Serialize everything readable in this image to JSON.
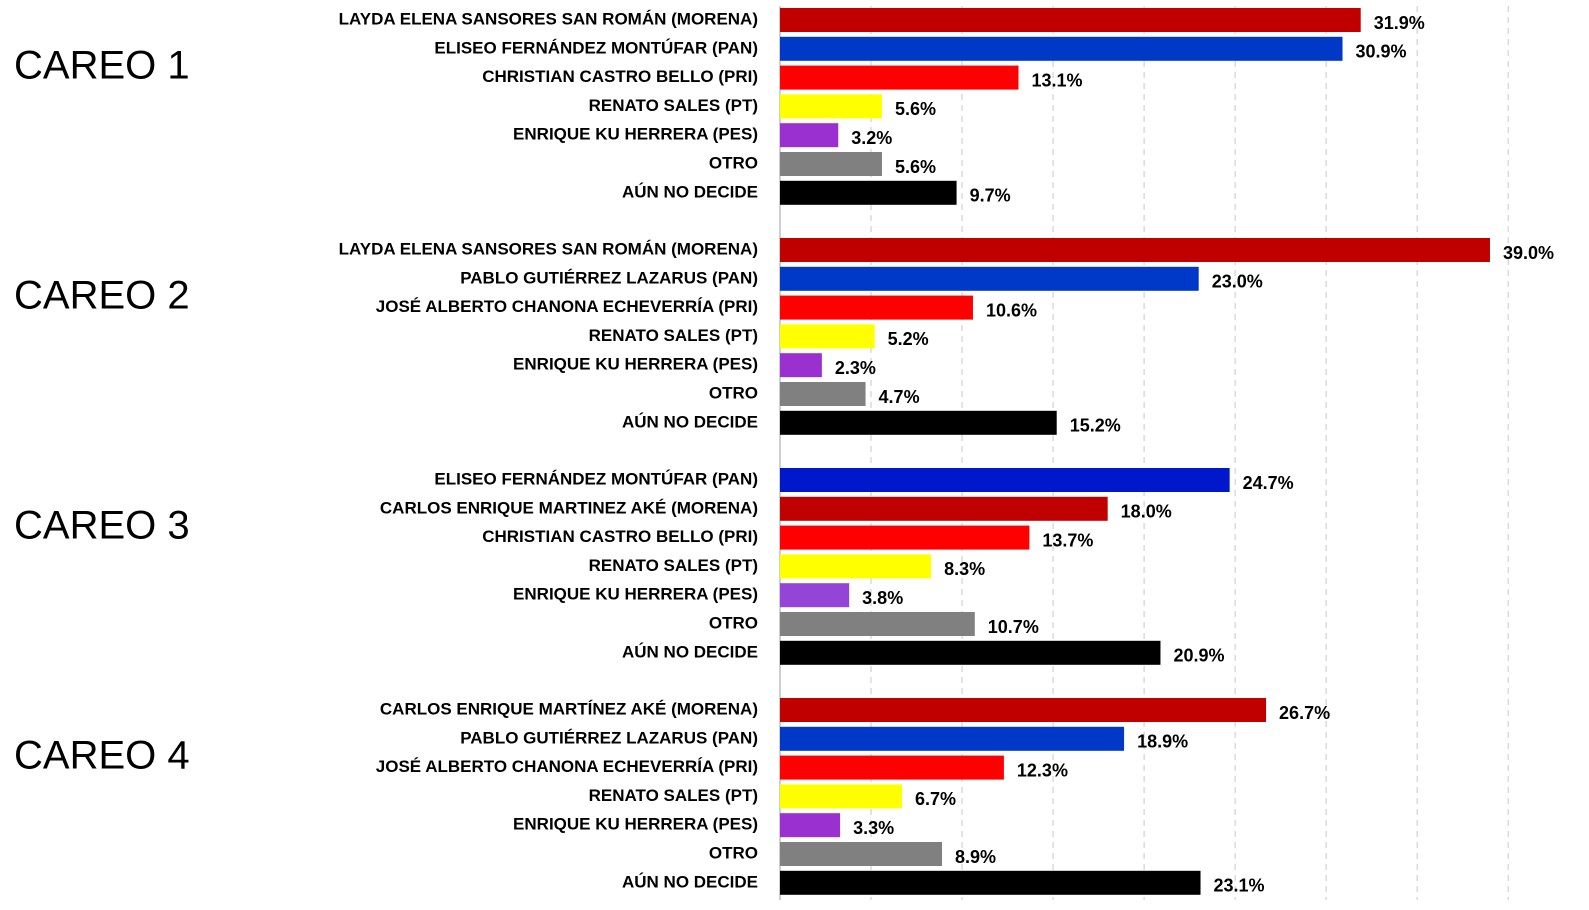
{
  "chart_data": {
    "type": "bar",
    "orientation": "horizontal",
    "xlim": [
      0,
      44
    ],
    "xticks": [
      5,
      10,
      15,
      20,
      25,
      30,
      35,
      40
    ],
    "grid": true,
    "groups": [
      {
        "title": "CAREO 1",
        "categories": [
          "LAYDA ELENA SANSORES SAN ROMÁN (MORENA)",
          "ELISEO FERNÁNDEZ MONTÚFAR (PAN)",
          "CHRISTIAN CASTRO BELLO (PRI)",
          "RENATO SALES (PT)",
          "ENRIQUE KU HERRERA (PES)",
          "OTRO",
          "AÚN NO DECIDE"
        ],
        "values": [
          31.9,
          30.9,
          13.1,
          5.6,
          3.2,
          5.6,
          9.7
        ],
        "value_labels": [
          "31.9%",
          "30.9%",
          "13.1%",
          "5.6%",
          "3.2%",
          "5.6%",
          "9.7%"
        ],
        "colors": [
          "#c00000",
          "#0038c8",
          "#ff0000",
          "#ffff00",
          "#9b30d0",
          "#808080",
          "#000000"
        ]
      },
      {
        "title": "CAREO 2",
        "categories": [
          "LAYDA ELENA SANSORES SAN ROMÁN (MORENA)",
          "PABLO GUTIÉRREZ LAZARUS (PAN)",
          "JOSÉ ALBERTO CHANONA ECHEVERRÍA (PRI)",
          "RENATO SALES (PT)",
          "ENRIQUE KU HERRERA (PES)",
          "OTRO",
          "AÚN NO DECIDE"
        ],
        "values": [
          39.0,
          23.0,
          10.6,
          5.2,
          2.3,
          4.7,
          15.2
        ],
        "value_labels": [
          "39.0%",
          "23.0%",
          "10.6%",
          "5.2%",
          "2.3%",
          "4.7%",
          "15.2%"
        ],
        "colors": [
          "#c00000",
          "#0038c8",
          "#ff0000",
          "#ffff00",
          "#9b30d0",
          "#808080",
          "#000000"
        ]
      },
      {
        "title": "CAREO 3",
        "categories": [
          "ELISEO FERNÁNDEZ MONTÚFAR (PAN)",
          "CARLOS ENRIQUE MARTINEZ AKÉ (MORENA)",
          "CHRISTIAN CASTRO BELLO (PRI)",
          "RENATO SALES (PT)",
          "ENRIQUE KU HERRERA (PES)",
          "OTRO",
          "AÚN NO DECIDE"
        ],
        "values": [
          24.7,
          18.0,
          13.7,
          8.3,
          3.8,
          10.7,
          20.9
        ],
        "value_labels": [
          "24.7%",
          "18.0%",
          "13.7%",
          "8.3%",
          "3.8%",
          "10.7%",
          "20.9%"
        ],
        "colors": [
          "#0018cc",
          "#c00000",
          "#ff0000",
          "#ffff00",
          "#9445d8",
          "#808080",
          "#000000"
        ]
      },
      {
        "title": "CAREO 4",
        "categories": [
          "CARLOS ENRIQUE MARTÍNEZ AKÉ (MORENA)",
          "PABLO GUTIÉRREZ LAZARUS (PAN)",
          "JOSÉ ALBERTO CHANONA ECHEVERRÍA (PRI)",
          "RENATO SALES (PT)",
          "ENRIQUE KU HERRERA (PES)",
          "OTRO",
          "AÚN NO DECIDE"
        ],
        "values": [
          26.7,
          18.9,
          12.3,
          6.7,
          3.3,
          8.9,
          23.1
        ],
        "value_labels": [
          "26.7%",
          "18.9%",
          "12.3%",
          "6.7%",
          "3.3%",
          "8.9%",
          "23.1%"
        ],
        "colors": [
          "#c00000",
          "#0038c8",
          "#ff0000",
          "#ffff00",
          "#9b30d0",
          "#808080",
          "#000000"
        ]
      }
    ]
  }
}
